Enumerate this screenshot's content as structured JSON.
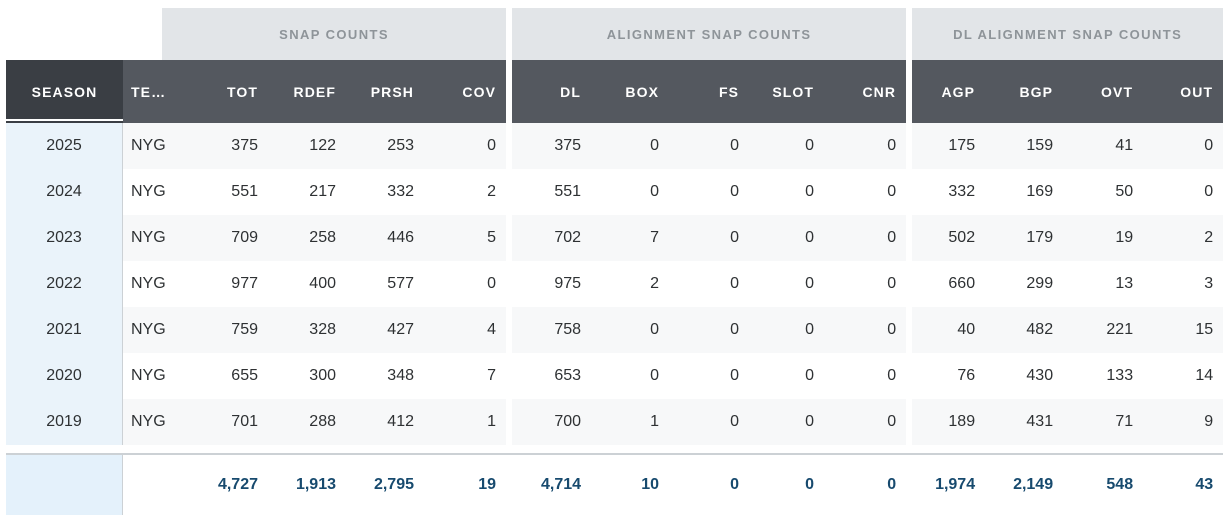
{
  "table": {
    "groups": [
      {
        "label": "SNAP COUNTS"
      },
      {
        "label": "ALIGNMENT SNAP COUNTS"
      },
      {
        "label": "DL ALIGNMENT SNAP COUNTS"
      }
    ],
    "column_keys": [
      "season",
      "team",
      "tot",
      "rdef",
      "prsh",
      "cov",
      "dl",
      "box",
      "fs",
      "slot",
      "cnr",
      "agp",
      "bgp",
      "ovt",
      "out"
    ],
    "columns": [
      {
        "key": "season",
        "label": "SEASON",
        "sorted": true
      },
      {
        "key": "team",
        "label": "TE…"
      },
      {
        "key": "tot",
        "label": "TOT"
      },
      {
        "key": "rdef",
        "label": "RDEF"
      },
      {
        "key": "prsh",
        "label": "PRSH"
      },
      {
        "key": "cov",
        "label": "COV"
      },
      {
        "key": "dl",
        "label": "DL"
      },
      {
        "key": "box",
        "label": "BOX"
      },
      {
        "key": "fs",
        "label": "FS"
      },
      {
        "key": "slot",
        "label": "SLOT"
      },
      {
        "key": "cnr",
        "label": "CNR"
      },
      {
        "key": "agp",
        "label": "AGP"
      },
      {
        "key": "bgp",
        "label": "BGP"
      },
      {
        "key": "ovt",
        "label": "OVT"
      },
      {
        "key": "out",
        "label": "OUT"
      }
    ],
    "rows": [
      [
        "2025",
        "NYG",
        "375",
        "122",
        "253",
        "0",
        "375",
        "0",
        "0",
        "0",
        "0",
        "175",
        "159",
        "41",
        "0"
      ],
      [
        "2024",
        "NYG",
        "551",
        "217",
        "332",
        "2",
        "551",
        "0",
        "0",
        "0",
        "0",
        "332",
        "169",
        "50",
        "0"
      ],
      [
        "2023",
        "NYG",
        "709",
        "258",
        "446",
        "5",
        "702",
        "7",
        "0",
        "0",
        "0",
        "502",
        "179",
        "19",
        "2"
      ],
      [
        "2022",
        "NYG",
        "977",
        "400",
        "577",
        "0",
        "975",
        "2",
        "0",
        "0",
        "0",
        "660",
        "299",
        "13",
        "3"
      ],
      [
        "2021",
        "NYG",
        "759",
        "328",
        "427",
        "4",
        "758",
        "0",
        "0",
        "0",
        "0",
        "40",
        "482",
        "221",
        "15"
      ],
      [
        "2020",
        "NYG",
        "655",
        "300",
        "348",
        "7",
        "653",
        "0",
        "0",
        "0",
        "0",
        "76",
        "430",
        "133",
        "14"
      ],
      [
        "2019",
        "NYG",
        "701",
        "288",
        "412",
        "1",
        "700",
        "1",
        "0",
        "0",
        "0",
        "189",
        "431",
        "71",
        "9"
      ]
    ],
    "totals": [
      "",
      "",
      "4,727",
      "1,913",
      "2,795",
      "19",
      "4,714",
      "10",
      "0",
      "0",
      "0",
      "1,974",
      "2,149",
      "548",
      "43"
    ]
  },
  "colors": {
    "header_bg": "#54585f",
    "header_active_bg": "#3a3e44",
    "header_text": "#ffffff",
    "group_header_bg": "#e2e5e8",
    "group_header_text": "#8e9499",
    "row_stripe_bg": "#f7f8f9",
    "season_cell_bg": "#eaf3fa",
    "totals_season_cell_bg": "#e4f1fb",
    "totals_text": "#174a6e",
    "data_text": "#2e3133",
    "divider": "#ccd1d5"
  }
}
